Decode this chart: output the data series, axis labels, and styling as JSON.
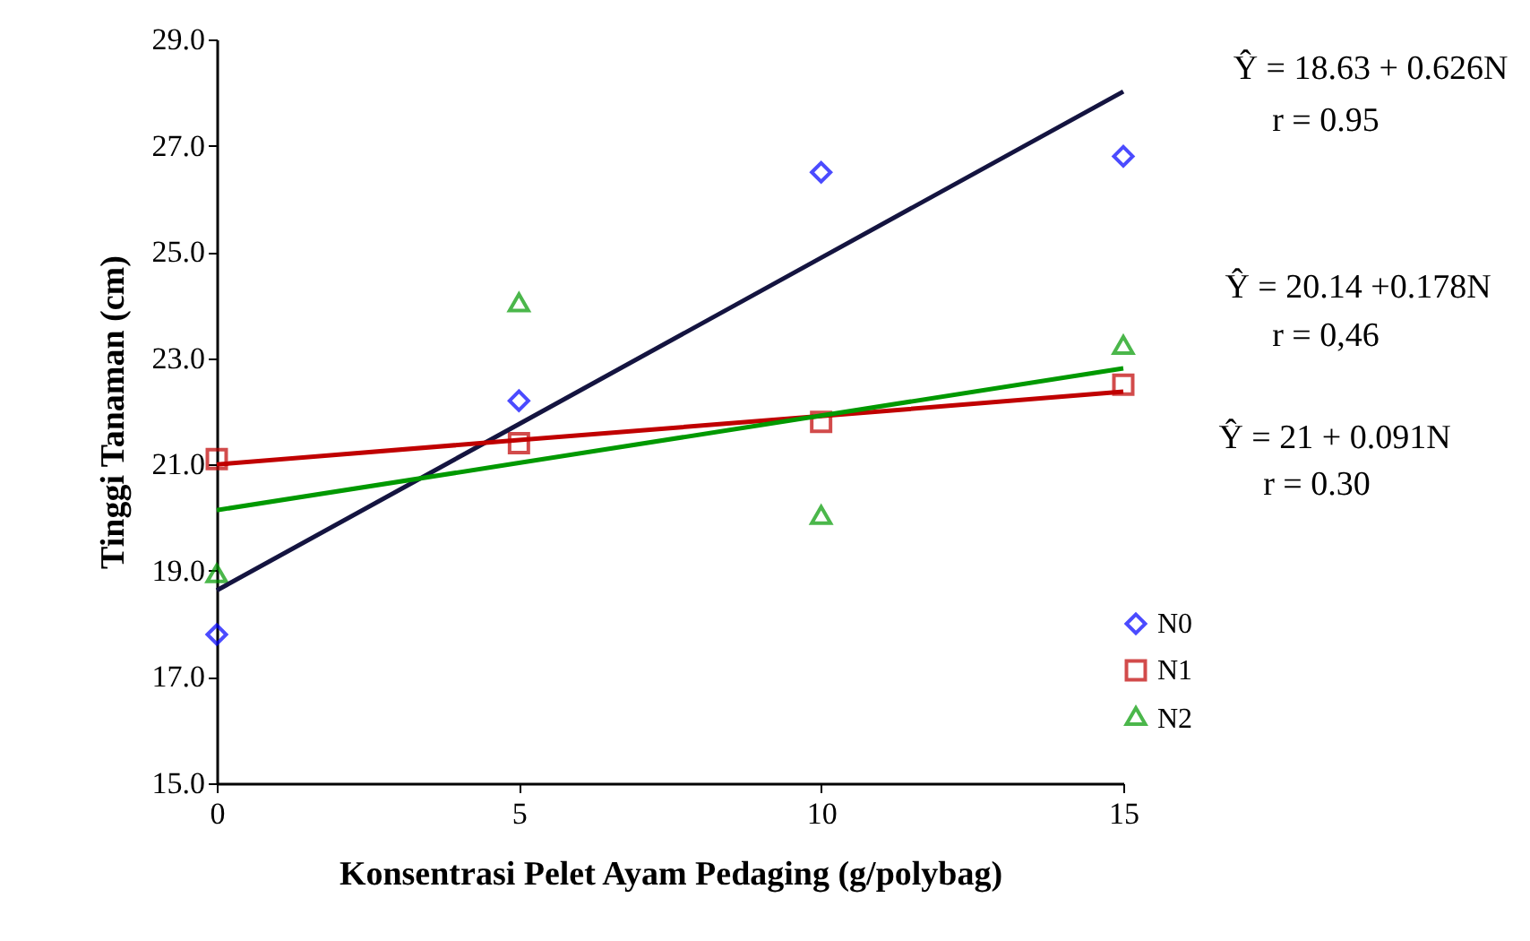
{
  "chart_data": {
    "type": "scatter",
    "xlabel": "Konsentrasi Pelet Ayam Pedaging (g/polybag)",
    "ylabel": "Tinggi Tanaman (cm)",
    "x": [
      0,
      5,
      10,
      15
    ],
    "xlim": [
      0,
      15
    ],
    "xticks": [
      0,
      5,
      10,
      15
    ],
    "ylim": [
      15,
      29
    ],
    "yticks": [
      {
        "value": 15,
        "label": "15.0"
      },
      {
        "value": 17,
        "label": "17.0"
      },
      {
        "value": 19,
        "label": "19.0"
      },
      {
        "value": 21,
        "label": "21.0"
      },
      {
        "value": 23,
        "label": "23.0"
      },
      {
        "value": 25,
        "label": "25.0"
      },
      {
        "value": 27,
        "label": "27.0"
      },
      {
        "value": 29,
        "label": "29.0"
      }
    ],
    "grid": false,
    "legend": "bottom right",
    "series": [
      {
        "name": "N0",
        "color": "#0000ff",
        "marker": "diamond",
        "values": [
          17.8,
          22.2,
          26.5,
          26.8
        ]
      },
      {
        "name": "N1",
        "color": "#c00000",
        "marker": "square",
        "values": [
          21.1,
          21.4,
          21.8,
          22.5
        ]
      },
      {
        "name": "N2",
        "color": "#009900",
        "marker": "triangle",
        "values": [
          18.9,
          24.0,
          20.0,
          23.2
        ]
      },
      {
        "type": "line",
        "color": "#141440",
        "values": [
          18.63,
          21.76,
          24.89,
          28.02
        ]
      },
      {
        "type": "line",
        "color": "#c00000",
        "values": [
          21.0,
          21.46,
          21.91,
          22.37
        ]
      },
      {
        "type": "line",
        "color": "#009900",
        "values": [
          20.14,
          21.03,
          21.92,
          22.81
        ]
      }
    ],
    "annotations": [
      "Ŷ = 18.63 + 0.626N",
      "r = 0.95",
      "Ŷ = 20.14 +0.178N",
      "r = 0,46",
      "Ŷ = 21 + 0.091N",
      "r = 0.30"
    ]
  }
}
